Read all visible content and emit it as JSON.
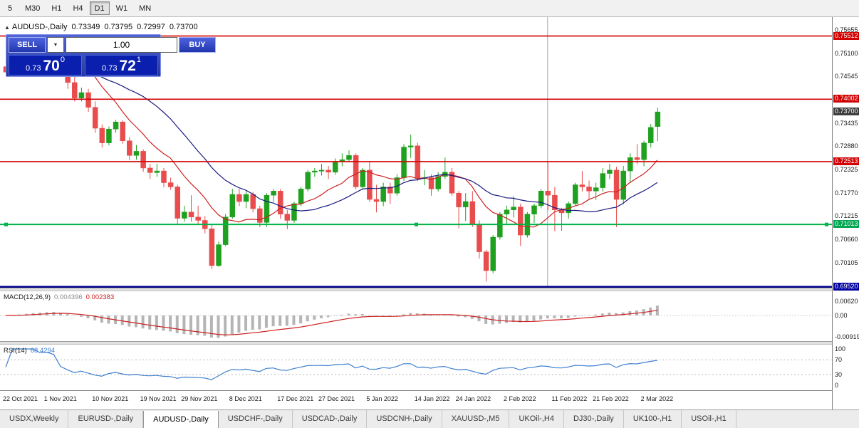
{
  "toolbar": {
    "timeframes": [
      {
        "label": "5",
        "active": false
      },
      {
        "label": "M30",
        "active": false
      },
      {
        "label": "H1",
        "active": false
      },
      {
        "label": "H4",
        "active": false
      },
      {
        "label": "D1",
        "active": true
      },
      {
        "label": "W1",
        "active": false
      },
      {
        "label": "MN",
        "active": false
      }
    ]
  },
  "chart_header": {
    "collapse_icon": "▲",
    "symbol": "AUDUSD-,Daily",
    "open": "0.73349",
    "high": "0.73795",
    "low": "0.72997",
    "close": "0.73700"
  },
  "trade_panel": {
    "sell_label": "SELL",
    "buy_label": "BUY",
    "volume": "1.00",
    "sell_price": {
      "prefix": "0.73",
      "big": "70",
      "sup": "0"
    },
    "buy_price": {
      "prefix": "0.73",
      "big": "72",
      "sup": "1"
    }
  },
  "price_scale": {
    "ticks": [
      "0.75655",
      "0.75100",
      "0.74545",
      "0.73990",
      "0.73435",
      "0.72880",
      "0.72325",
      "0.71770",
      "0.71215",
      "0.70660",
      "0.70105",
      "0.69550"
    ],
    "badges": [
      {
        "text": "0.75512",
        "price": 0.75512,
        "color": "#d20000"
      },
      {
        "text": "0.74002",
        "price": 0.74002,
        "color": "#d20000"
      },
      {
        "text": "0.73700",
        "price": 0.737,
        "color": "#3c3c3c"
      },
      {
        "text": "0.72513",
        "price": 0.72513,
        "color": "#d20000"
      },
      {
        "text": "0.71013",
        "price": 0.71013,
        "color": "#00a651"
      },
      {
        "text": "0.69520",
        "price": 0.6952,
        "color": "#0000a0"
      }
    ]
  },
  "macd": {
    "label": "MACD(12,26,9)",
    "value_main": "0.004396",
    "value_signal": "0.002383",
    "params": {
      "fast": 12,
      "slow": 26,
      "signal": 9
    },
    "histogram_color": "#b5b5b5",
    "signal_color": "#cc2222",
    "scale_labels": [
      {
        "text": "0.00620",
        "v": 0.0062
      },
      {
        "text": "0.00",
        "v": 0
      },
      {
        "text": "-0.00919",
        "v": -0.00919
      }
    ]
  },
  "rsi": {
    "label": "RSI(14)",
    "value": "68.4294",
    "period": 14,
    "color": "#3f7fd0",
    "levels": [
      70,
      30
    ],
    "scale_labels": [
      {
        "text": "100",
        "v": 100
      },
      {
        "text": "70",
        "v": 70
      },
      {
        "text": "30",
        "v": 30
      },
      {
        "text": "0",
        "v": 0
      }
    ]
  },
  "tabs": [
    {
      "label": "USDX,Weekly",
      "active": false
    },
    {
      "label": "EURUSD-,Daily",
      "active": false
    },
    {
      "label": "AUDUSD-,Daily",
      "active": true
    },
    {
      "label": "USDCHF-,Daily",
      "active": false
    },
    {
      "label": "USDCAD-,Daily",
      "active": false
    },
    {
      "label": "USDCNH-,Daily",
      "active": false
    },
    {
      "label": "XAUUSD-,M5",
      "active": false
    },
    {
      "label": "UKOil-,H4",
      "active": false
    },
    {
      "label": "DJ30-,Daily",
      "active": false
    },
    {
      "label": "UK100-,H1",
      "active": false
    },
    {
      "label": "USOil-,H1",
      "active": false
    }
  ],
  "chart_data": {
    "type": "candlestick",
    "symbol": "AUDUSD-",
    "timeframe": "Daily",
    "y_range": [
      0.6952,
      0.7564
    ],
    "colors": {
      "up": "#1fa11f",
      "down": "#e84c4c",
      "ma_fast": "#cc2222",
      "ma_slow": "#1a1a80"
    },
    "overlays": [
      {
        "type": "sma",
        "period": 10,
        "color": "#cc2222"
      },
      {
        "type": "sma",
        "period": 21,
        "color": "#1a1a80"
      }
    ],
    "current_price": 0.737,
    "hlines": [
      {
        "price": 0.75512,
        "color": "#d20000",
        "width": 1.6,
        "selected": false
      },
      {
        "price": 0.74002,
        "color": "#d20000",
        "width": 1.6,
        "selected": false
      },
      {
        "price": 0.72513,
        "color": "#d20000",
        "width": 1.6,
        "selected": false
      },
      {
        "price": 0.71013,
        "color": "#00b34a",
        "width": 2,
        "selected": true
      },
      {
        "price": 0.6952,
        "color": "#000089",
        "width": 3,
        "selected": false
      }
    ],
    "vlines": [
      {
        "index": 79,
        "color": "#a8a8a8"
      }
    ],
    "x_labels": [
      {
        "text": "22 Oct 2021",
        "i": 0
      },
      {
        "text": "1 Nov 2021",
        "i": 6
      },
      {
        "text": "10 Nov 2021",
        "i": 13
      },
      {
        "text": "19 Nov 2021",
        "i": 20
      },
      {
        "text": "29 Nov 2021",
        "i": 26
      },
      {
        "text": "8 Dec 2021",
        "i": 33
      },
      {
        "text": "17 Dec 2021",
        "i": 40
      },
      {
        "text": "27 Dec 2021",
        "i": 46
      },
      {
        "text": "5 Jan 2022",
        "i": 53
      },
      {
        "text": "14 Jan 2022",
        "i": 60
      },
      {
        "text": "24 Jan 2022",
        "i": 66
      },
      {
        "text": "2 Feb 2022",
        "i": 73
      },
      {
        "text": "11 Feb 2022",
        "i": 80
      },
      {
        "text": "21 Feb 2022",
        "i": 86
      },
      {
        "text": "2 Mar 2022",
        "i": 93
      }
    ],
    "candles": [
      [
        0.7478,
        0.7485,
        0.7455,
        0.7465
      ],
      [
        0.7465,
        0.749,
        0.746,
        0.7485
      ],
      [
        0.7485,
        0.7512,
        0.748,
        0.75
      ],
      [
        0.75,
        0.7525,
        0.749,
        0.7512
      ],
      [
        0.7512,
        0.753,
        0.7505,
        0.7525
      ],
      [
        0.7525,
        0.7535,
        0.751,
        0.7518
      ],
      [
        0.7518,
        0.7538,
        0.751,
        0.753
      ],
      [
        0.753,
        0.7541,
        0.7516,
        0.7524
      ],
      [
        0.7524,
        0.7532,
        0.7462,
        0.747
      ],
      [
        0.747,
        0.748,
        0.7425,
        0.744
      ],
      [
        0.744,
        0.7455,
        0.7395,
        0.7403
      ],
      [
        0.7403,
        0.7428,
        0.7395,
        0.7416
      ],
      [
        0.7416,
        0.7425,
        0.737,
        0.7381
      ],
      [
        0.7381,
        0.7395,
        0.732,
        0.7331
      ],
      [
        0.7331,
        0.734,
        0.7285,
        0.7296
      ],
      [
        0.7296,
        0.7335,
        0.729,
        0.7329
      ],
      [
        0.7329,
        0.7351,
        0.732,
        0.7346
      ],
      [
        0.7346,
        0.735,
        0.7294,
        0.7301
      ],
      [
        0.7301,
        0.731,
        0.7255,
        0.7266
      ],
      [
        0.7266,
        0.7291,
        0.7256,
        0.7276
      ],
      [
        0.7276,
        0.7281,
        0.7227,
        0.7236
      ],
      [
        0.7236,
        0.7246,
        0.721,
        0.7225
      ],
      [
        0.7225,
        0.7246,
        0.7215,
        0.7229
      ],
      [
        0.7229,
        0.7236,
        0.719,
        0.7201
      ],
      [
        0.7201,
        0.7213,
        0.7184,
        0.7191
      ],
      [
        0.7191,
        0.7196,
        0.71,
        0.7116
      ],
      [
        0.7116,
        0.7146,
        0.7108,
        0.7131
      ],
      [
        0.7131,
        0.7171,
        0.7108,
        0.7119
      ],
      [
        0.7119,
        0.7146,
        0.71,
        0.7111
      ],
      [
        0.7111,
        0.7121,
        0.708,
        0.7091
      ],
      [
        0.7091,
        0.7101,
        0.6995,
        0.7003
      ],
      [
        0.7003,
        0.7061,
        0.7,
        0.7053
      ],
      [
        0.7053,
        0.7126,
        0.705,
        0.7119
      ],
      [
        0.7119,
        0.7186,
        0.7115,
        0.7173
      ],
      [
        0.7173,
        0.7186,
        0.7145,
        0.7156
      ],
      [
        0.7156,
        0.7181,
        0.714,
        0.7173
      ],
      [
        0.7173,
        0.7179,
        0.713,
        0.7139
      ],
      [
        0.7139,
        0.7146,
        0.7095,
        0.7106
      ],
      [
        0.7106,
        0.7176,
        0.7095,
        0.7171
      ],
      [
        0.7171,
        0.7186,
        0.7155,
        0.7181
      ],
      [
        0.7181,
        0.7186,
        0.7115,
        0.7126
      ],
      [
        0.7126,
        0.7136,
        0.709,
        0.7111
      ],
      [
        0.7111,
        0.7156,
        0.7105,
        0.7151
      ],
      [
        0.7151,
        0.7191,
        0.7145,
        0.7186
      ],
      [
        0.7186,
        0.7231,
        0.718,
        0.7226
      ],
      [
        0.7226,
        0.7236,
        0.7215,
        0.7229
      ],
      [
        0.7229,
        0.7246,
        0.7218,
        0.7231
      ],
      [
        0.7231,
        0.7241,
        0.721,
        0.7226
      ],
      [
        0.7226,
        0.7259,
        0.722,
        0.7251
      ],
      [
        0.7251,
        0.7271,
        0.724,
        0.7256
      ],
      [
        0.7256,
        0.7278,
        0.725,
        0.7266
      ],
      [
        0.7266,
        0.7271,
        0.7185,
        0.7191
      ],
      [
        0.7191,
        0.7236,
        0.7185,
        0.7231
      ],
      [
        0.7231,
        0.7251,
        0.7155,
        0.7161
      ],
      [
        0.7161,
        0.7196,
        0.713,
        0.7156
      ],
      [
        0.7156,
        0.7201,
        0.7145,
        0.7191
      ],
      [
        0.7191,
        0.7201,
        0.715,
        0.7176
      ],
      [
        0.7176,
        0.7221,
        0.717,
        0.7213
      ],
      [
        0.7213,
        0.7293,
        0.7205,
        0.7286
      ],
      [
        0.7286,
        0.7316,
        0.726,
        0.7289
      ],
      [
        0.7289,
        0.7296,
        0.7205,
        0.7211
      ],
      [
        0.7211,
        0.7231,
        0.7195,
        0.7213
      ],
      [
        0.7213,
        0.7221,
        0.717,
        0.7186
      ],
      [
        0.7186,
        0.7226,
        0.718,
        0.7216
      ],
      [
        0.7216,
        0.7261,
        0.721,
        0.7226
      ],
      [
        0.7226,
        0.7236,
        0.717,
        0.7176
      ],
      [
        0.7176,
        0.7181,
        0.7092,
        0.7143
      ],
      [
        0.7143,
        0.7176,
        0.711,
        0.7156
      ],
      [
        0.7156,
        0.7181,
        0.7095,
        0.7101
      ],
      [
        0.7101,
        0.7111,
        0.702,
        0.7036
      ],
      [
        0.7036,
        0.7041,
        0.6965,
        0.6991
      ],
      [
        0.6991,
        0.7076,
        0.6985,
        0.7071
      ],
      [
        0.7071,
        0.7131,
        0.7065,
        0.7126
      ],
      [
        0.7126,
        0.7146,
        0.71,
        0.7136
      ],
      [
        0.7136,
        0.7169,
        0.7118,
        0.7143
      ],
      [
        0.7143,
        0.7151,
        0.705,
        0.7076
      ],
      [
        0.7076,
        0.7131,
        0.707,
        0.7126
      ],
      [
        0.7126,
        0.7151,
        0.7105,
        0.7146
      ],
      [
        0.7146,
        0.7186,
        0.714,
        0.7181
      ],
      [
        0.7181,
        0.7251,
        0.7135,
        0.7171
      ],
      [
        0.7171,
        0.7191,
        0.7085,
        0.7136
      ],
      [
        0.7136,
        0.7141,
        0.7086,
        0.7129
      ],
      [
        0.7129,
        0.7156,
        0.7115,
        0.7151
      ],
      [
        0.7151,
        0.7201,
        0.7145,
        0.7196
      ],
      [
        0.7196,
        0.7229,
        0.718,
        0.7191
      ],
      [
        0.7191,
        0.7206,
        0.716,
        0.7181
      ],
      [
        0.7181,
        0.7201,
        0.716,
        0.7189
      ],
      [
        0.7189,
        0.7236,
        0.718,
        0.7223
      ],
      [
        0.7223,
        0.7246,
        0.721,
        0.7231
      ],
      [
        0.7231,
        0.7239,
        0.7095,
        0.7161
      ],
      [
        0.7161,
        0.7241,
        0.715,
        0.7229
      ],
      [
        0.7229,
        0.7271,
        0.72,
        0.7261
      ],
      [
        0.7261,
        0.7293,
        0.7245,
        0.7256
      ],
      [
        0.7256,
        0.7301,
        0.724,
        0.7296
      ],
      [
        0.7296,
        0.7341,
        0.7285,
        0.7333
      ],
      [
        0.7335,
        0.738,
        0.73,
        0.737
      ]
    ]
  }
}
